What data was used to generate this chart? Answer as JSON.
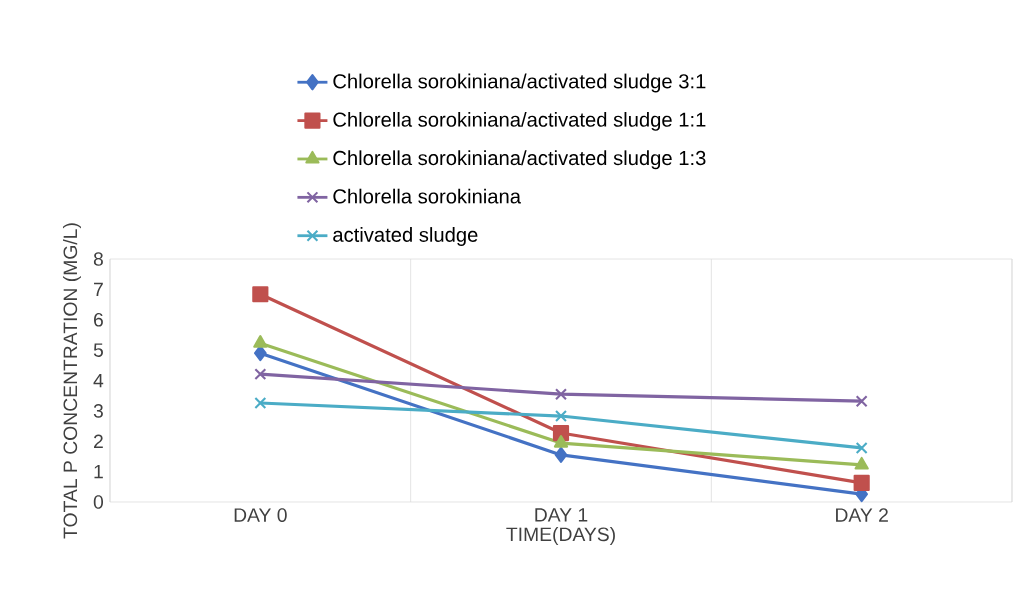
{
  "chart_data": {
    "type": "line",
    "xlabel": "TIME(DAYS)",
    "ylabel": "TOTAL P CONCENTRATION (MG/L)",
    "categories": [
      "DAY 0",
      "DAY 1",
      "DAY 2"
    ],
    "ylim": [
      0,
      8
    ],
    "yticks": [
      0,
      1,
      2,
      3,
      4,
      5,
      6,
      7,
      8
    ],
    "grid": "x",
    "legend": "top",
    "series": [
      {
        "name": "Chlorella sorokiniana/activated sludge  3:1",
        "color": "#4472c4",
        "marker": "diamond",
        "values": [
          4.9,
          1.55,
          0.26
        ]
      },
      {
        "name": "Chlorella sorokiniana/activated sludge 1:1",
        "color": "#c0504d",
        "marker": "square",
        "values": [
          6.84,
          2.27,
          0.63
        ]
      },
      {
        "name": "Chlorella sorokiniana/activated sludge 1:3",
        "color": "#9bbb59",
        "marker": "triangle",
        "values": [
          5.23,
          1.94,
          1.22
        ]
      },
      {
        "name": "Chlorella sorokiniana",
        "color": "#8064a2",
        "marker": "cross",
        "values": [
          4.21,
          3.55,
          3.32
        ]
      },
      {
        "name": "activated sludge",
        "color": "#4bacc6",
        "marker": "cross",
        "values": [
          3.26,
          2.83,
          1.78
        ]
      }
    ]
  }
}
